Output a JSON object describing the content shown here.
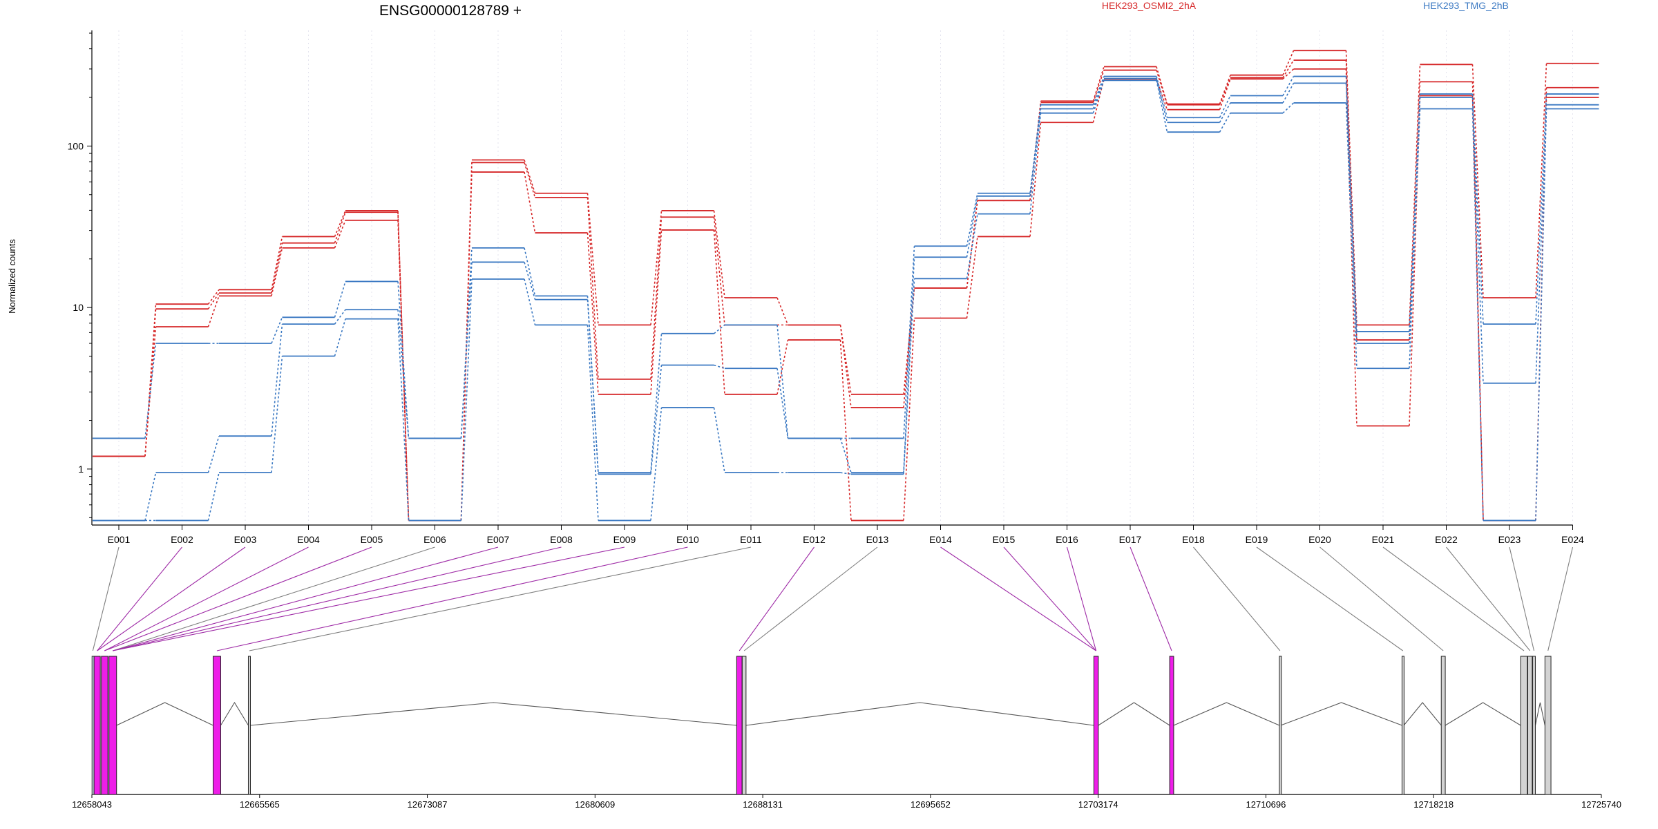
{
  "chart_data": {
    "type": "line",
    "title": "ENSG00000128789 +",
    "ylabel": "Normalized counts",
    "yscale": "log",
    "ylim": [
      0.45,
      520
    ],
    "yticks": [
      1,
      10,
      100
    ],
    "ytick_labels": [
      "1",
      "10",
      "100"
    ],
    "categories": [
      "E001",
      "E002",
      "E003",
      "E004",
      "E005",
      "E006",
      "E007",
      "E008",
      "E009",
      "E010",
      "E011",
      "E012",
      "E013",
      "E014",
      "E015",
      "E016",
      "E017",
      "E018",
      "E019",
      "E020",
      "E021",
      "E022",
      "E023",
      "E024"
    ],
    "legend": [
      {
        "name": "HEK293_OSMI2_2hA",
        "color": "#d62728"
      },
      {
        "name": "HEK293_TMG_2hB",
        "color": "#3a78c2"
      }
    ],
    "groups": [
      {
        "name": "HEK293_OSMI2_2hA",
        "color": "#d62728",
        "replicates": [
          [
            1.2,
            10.5,
            12.9,
            27.5,
            39.8,
            0.48,
            82,
            51,
            7.8,
            39.8,
            11.5,
            7.8,
            2.9,
            13.2,
            46,
            190,
            310,
            182,
            275,
            390,
            7.8,
            320,
            11.5,
            325
          ],
          [
            1.2,
            9.8,
            12.3,
            25.1,
            38.9,
            0.48,
            79,
            48,
            3.6,
            36.3,
            7.8,
            7.8,
            2.4,
            13.2,
            46,
            186,
            295,
            180,
            265,
            340,
            6.3,
            250,
            0.48,
            230
          ],
          [
            1.2,
            7.6,
            11.8,
            23.4,
            34.7,
            0.48,
            69,
            29,
            2.9,
            30.2,
            2.9,
            6.3,
            0.48,
            8.6,
            27.5,
            140,
            260,
            168,
            260,
            300,
            1.85,
            205,
            0.48,
            200
          ]
        ]
      },
      {
        "name": "HEK293_TMG_2hB",
        "color": "#3a78c2",
        "replicates": [
          [
            1.55,
            6.0,
            6.0,
            8.7,
            14.5,
            1.55,
            23.4,
            11.8,
            0.95,
            6.9,
            7.8,
            1.55,
            1.55,
            24,
            51,
            180,
            270,
            150,
            205,
            270,
            7.1,
            210,
            7.9,
            210
          ],
          [
            0.48,
            0.95,
            1.6,
            7.9,
            9.7,
            1.55,
            19.1,
            11.2,
            0.93,
            4.4,
            4.2,
            1.55,
            0.95,
            20.5,
            49,
            170,
            262,
            140,
            185,
            245,
            6.0,
            200,
            3.4,
            180
          ],
          [
            0.48,
            0.48,
            0.95,
            5.0,
            8.5,
            0.48,
            15,
            7.8,
            0.48,
            2.4,
            0.95,
            0.95,
            0.93,
            15.1,
            38,
            160,
            255,
            122,
            160,
            185,
            4.2,
            170,
            0.48,
            170
          ]
        ]
      }
    ],
    "gene_track": {
      "start": 12658043,
      "end": 12725740,
      "axis_labels": [
        "12658043",
        "12665565",
        "12673087",
        "12680609",
        "12688131",
        "12695652",
        "12703174",
        "12710696",
        "12718218",
        "12725740"
      ],
      "exons": [
        {
          "start": 12658050,
          "end": 12658120,
          "color": "#d0e0f0"
        },
        {
          "start": 12658140,
          "end": 12658420,
          "color": "#ee1ee8"
        },
        {
          "start": 12658470,
          "end": 12658760,
          "color": "#ee1ee8"
        },
        {
          "start": 12658810,
          "end": 12659150,
          "color": "#ee1ee8"
        },
        {
          "start": 12663480,
          "end": 12663820,
          "color": "#ee1ee8"
        },
        {
          "start": 12665060,
          "end": 12665150,
          "color": "#d3d3d3"
        },
        {
          "start": 12686960,
          "end": 12687200,
          "color": "#ee1ee8"
        },
        {
          "start": 12687210,
          "end": 12687380,
          "color": "#d3d3d3"
        },
        {
          "start": 12702980,
          "end": 12703180,
          "color": "#ee1ee8"
        },
        {
          "start": 12706380,
          "end": 12706560,
          "color": "#ee1ee8"
        },
        {
          "start": 12711300,
          "end": 12711360,
          "color": "#d3d3d3"
        },
        {
          "start": 12716800,
          "end": 12716880,
          "color": "#d3d3d3"
        },
        {
          "start": 12718560,
          "end": 12718740,
          "color": "#d3d3d3"
        },
        {
          "start": 12722120,
          "end": 12722420,
          "color": "#d3d3d3"
        },
        {
          "start": 12722440,
          "end": 12722640,
          "color": "#d3d3d3"
        },
        {
          "start": 12722660,
          "end": 12722780,
          "color": "#d3d3d3"
        },
        {
          "start": 12723210,
          "end": 12723480,
          "color": "#d3d3d3"
        }
      ],
      "feature_links": [
        {
          "bin": "E001",
          "genomic": 12658085,
          "color": "#7f7f7f"
        },
        {
          "bin": "E002",
          "genomic": 12658280,
          "color": "#9e2aa6"
        },
        {
          "bin": "E003",
          "genomic": 12658280,
          "color": "#9e2aa6"
        },
        {
          "bin": "E004",
          "genomic": 12658610,
          "color": "#9e2aa6"
        },
        {
          "bin": "E005",
          "genomic": 12658610,
          "color": "#9e2aa6"
        },
        {
          "bin": "E006",
          "genomic": 12658980,
          "color": "#7f7f7f"
        },
        {
          "bin": "E007",
          "genomic": 12658980,
          "color": "#9e2aa6"
        },
        {
          "bin": "E008",
          "genomic": 12658980,
          "color": "#9e2aa6"
        },
        {
          "bin": "E009",
          "genomic": 12658980,
          "color": "#9e2aa6"
        },
        {
          "bin": "E010",
          "genomic": 12663650,
          "color": "#9e2aa6"
        },
        {
          "bin": "E011",
          "genomic": 12665105,
          "color": "#7f7f7f"
        },
        {
          "bin": "E012",
          "genomic": 12687080,
          "color": "#9e2aa6"
        },
        {
          "bin": "E013",
          "genomic": 12687295,
          "color": "#7f7f7f"
        },
        {
          "bin": "E014",
          "genomic": 12703080,
          "color": "#9e2aa6"
        },
        {
          "bin": "E015",
          "genomic": 12703080,
          "color": "#9e2aa6"
        },
        {
          "bin": "E016",
          "genomic": 12703080,
          "color": "#9e2aa6"
        },
        {
          "bin": "E017",
          "genomic": 12706470,
          "color": "#9e2aa6"
        },
        {
          "bin": "E018",
          "genomic": 12711330,
          "color": "#7f7f7f"
        },
        {
          "bin": "E019",
          "genomic": 12716840,
          "color": "#7f7f7f"
        },
        {
          "bin": "E020",
          "genomic": 12718650,
          "color": "#7f7f7f"
        },
        {
          "bin": "E021",
          "genomic": 12722270,
          "color": "#7f7f7f"
        },
        {
          "bin": "E022",
          "genomic": 12722540,
          "color": "#7f7f7f"
        },
        {
          "bin": "E023",
          "genomic": 12722720,
          "color": "#7f7f7f"
        },
        {
          "bin": "E024",
          "genomic": 12723345,
          "color": "#7f7f7f"
        }
      ]
    }
  }
}
